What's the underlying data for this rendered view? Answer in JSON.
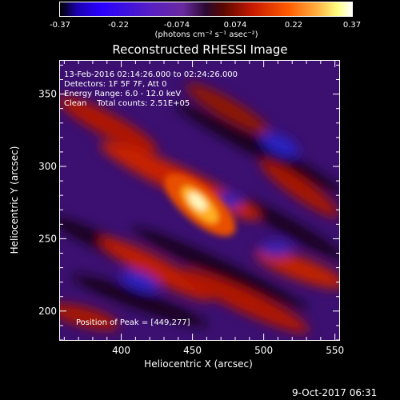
{
  "colorbar": {
    "ticks": [
      "-0.37",
      "-0.22",
      "-0.074",
      "0.074",
      "0.22",
      "0.37"
    ],
    "unit_label": "(photons cm⁻² s⁻¹ asec⁻²)"
  },
  "chart_data": {
    "type": "heatmap",
    "title": "Reconstructed RHESSI Image",
    "xlabel": "Heliocentric X (arcsec)",
    "ylabel": "Heliocentric Y (arcsec)",
    "xlim": [
      357,
      553
    ],
    "ylim": [
      180,
      373
    ],
    "x_ticks": [
      "400",
      "450",
      "500",
      "550"
    ],
    "y_ticks": [
      "200",
      "250",
      "300",
      "350"
    ],
    "colormap_range": [
      -0.37,
      0.37
    ],
    "peak": [
      449,
      277
    ],
    "info_lines": [
      "13-Feb-2016 02:14:26.000 to 02:24:26.000",
      "Detectors: 1F 5F 7F, Att 0",
      "Energy Range: 6.0 - 12.0 keV",
      "Clean    Total counts: 2.51E+05"
    ],
    "peak_label": "Position of Peak = [449,277]"
  },
  "footer": {
    "timestamp": "9-Oct-2017 06:31"
  }
}
